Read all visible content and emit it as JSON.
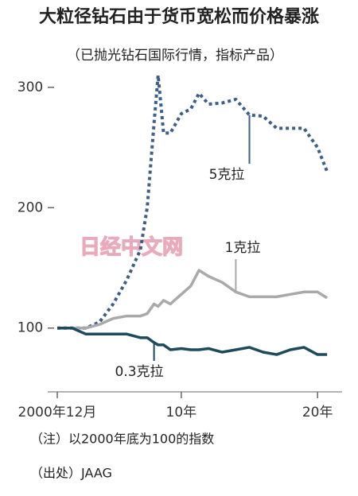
{
  "chart_data": {
    "type": "line",
    "title": "大粒径钻石由于货币宽松而价格暴涨",
    "subtitle": "（已抛光钻石国际行情，指标产品）",
    "watermark": "日经中文网",
    "note": "（注）以2000年底为100的指数",
    "source": "（出处）JAAG",
    "x": [
      2000.9,
      2002,
      2003,
      2004,
      2005,
      2006,
      2007,
      2007.5,
      2008,
      2008.3,
      2008.7,
      2009.2,
      2010,
      2010.7,
      2011.3,
      2012,
      2013,
      2014,
      2015,
      2016,
      2017,
      2018,
      2019,
      2020,
      2020.7
    ],
    "xlim": [
      2000.2,
      2021.8
    ],
    "xticks": [
      {
        "value": 2000.9,
        "label": "2000年12月"
      },
      {
        "value": 2010,
        "label": "10年"
      },
      {
        "value": 2020,
        "label": "20年"
      }
    ],
    "ylim": [
      47,
      323
    ],
    "yticks": [
      100,
      200,
      300
    ],
    "series": [
      {
        "name": "5克拉",
        "color": "#3d5f88",
        "dashed": true,
        "values": [
          100,
          100,
          100,
          105,
          120,
          140,
          165,
          200,
          270,
          310,
          262,
          262,
          278,
          282,
          295,
          286,
          287,
          290,
          277,
          276,
          266,
          266,
          266,
          250,
          230
        ]
      },
      {
        "name": "1克拉",
        "color": "#a9a9a9",
        "dashed": false,
        "values": [
          100,
          100,
          100,
          103,
          108,
          110,
          110,
          112,
          120,
          118,
          123,
          120,
          128,
          135,
          148,
          143,
          138,
          130,
          126,
          126,
          126,
          128,
          130,
          130,
          125
        ]
      },
      {
        "name": "0.3克拉",
        "color": "#1d4a5c",
        "dashed": false,
        "values": [
          100,
          100,
          95,
          95,
          95,
          95,
          92,
          92,
          88,
          86,
          86,
          82,
          83,
          82,
          82,
          83,
          80,
          82,
          84,
          80,
          78,
          82,
          84,
          78,
          78
        ]
      }
    ]
  }
}
